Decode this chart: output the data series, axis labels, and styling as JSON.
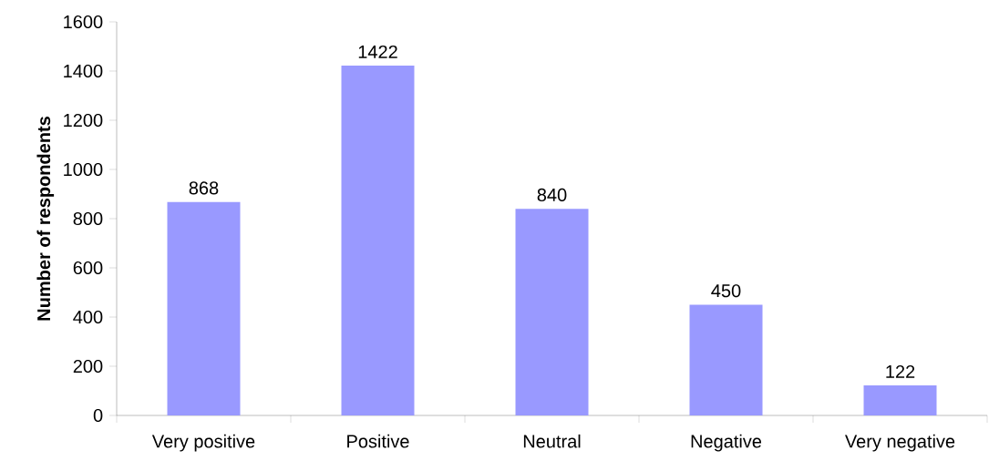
{
  "chart_data": {
    "type": "bar",
    "ylabel": "Number of respondents",
    "categories": [
      "Very positive",
      "Positive",
      "Neutral",
      "Negative",
      "Very negative"
    ],
    "values": [
      868,
      1422,
      840,
      450,
      122
    ],
    "color": "#9999ff",
    "ylim": [
      0,
      1600
    ],
    "yticks": [
      0,
      200,
      400,
      600,
      800,
      1000,
      1200,
      1400,
      1600
    ],
    "data_labels": true
  }
}
